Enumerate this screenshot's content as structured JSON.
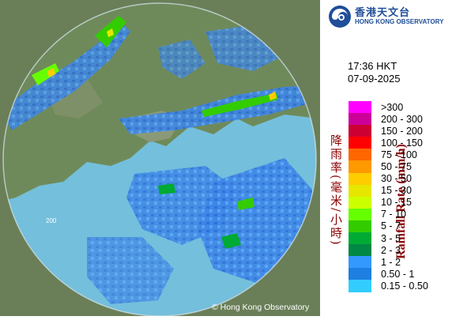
{
  "logo": {
    "name_cn": "香港天文台",
    "name_en": "HONG KONG OBSERVATORY"
  },
  "timestamp": {
    "time": "17:36 HKT",
    "date": "07-09-2025"
  },
  "legend": {
    "title_cn": "降雨率(毫米/小時)",
    "title_en": "Rainfall Rate (mm/h)",
    "items": [
      {
        "label": ">300",
        "color": "#ff00ff"
      },
      {
        "label": "200 - 300",
        "color": "#cc0099"
      },
      {
        "label": "150 - 200",
        "color": "#cc0033"
      },
      {
        "label": "100 - 150",
        "color": "#ff0000"
      },
      {
        "label": "75 - 100",
        "color": "#ff6600"
      },
      {
        "label": "50 - 75",
        "color": "#ff9900"
      },
      {
        "label": "30 - 50",
        "color": "#ffcc00"
      },
      {
        "label": "15 - 30",
        "color": "#e6e600"
      },
      {
        "label": "10 - 15",
        "color": "#ccff00"
      },
      {
        "label": "7 - 10",
        "color": "#66ff00"
      },
      {
        "label": "5 - 7",
        "color": "#33cc00"
      },
      {
        "label": "3 - 5",
        "color": "#00aa33"
      },
      {
        "label": "2 - 3",
        "color": "#008844"
      },
      {
        "label": "1 - 2",
        "color": "#3399ff"
      },
      {
        "label": "0.50 - 1",
        "color": "#1e7fe0"
      },
      {
        "label": "0.15 - 0.50",
        "color": "#33ccff"
      }
    ]
  },
  "radar": {
    "range_ring_label": "200",
    "copyright": "© Hong Kong Observatory",
    "land_color": "#6f8a5a",
    "sea_color": "#6fb8d6"
  }
}
